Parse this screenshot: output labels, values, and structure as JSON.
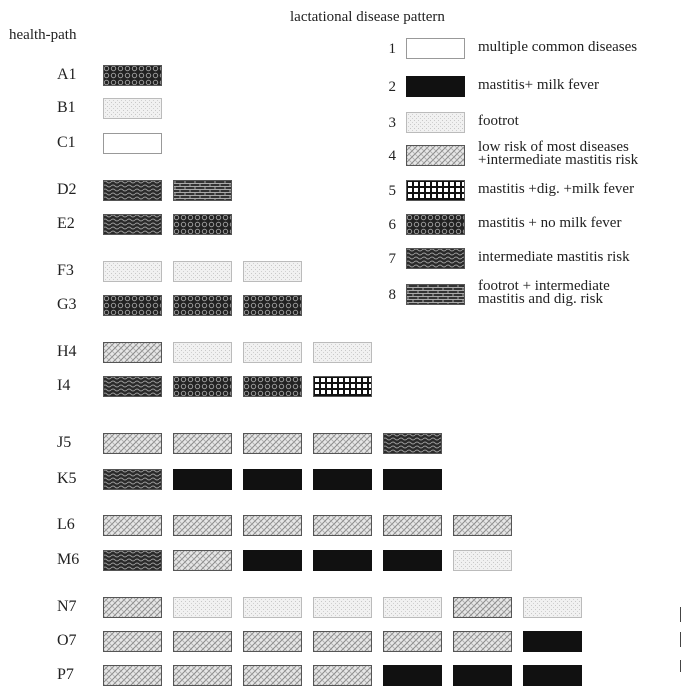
{
  "title": "lactational disease pattern",
  "y_axis_label": "health-path",
  "patterns": {
    "1": {
      "label": [
        "multiple common diseases"
      ]
    },
    "2": {
      "label": [
        "mastitis+ milk fever"
      ]
    },
    "3": {
      "label": [
        "footrot"
      ]
    },
    "4": {
      "label": [
        "low risk of most diseases",
        "+intermediate mastitis risk"
      ]
    },
    "5": {
      "label": [
        "mastitis +dig. +milk fever"
      ]
    },
    "6": {
      "label": [
        "mastitis + no milk fever"
      ]
    },
    "7": {
      "label": [
        "intermediate mastitis risk"
      ]
    },
    "8": {
      "label": [
        "footrot + intermediate",
        "mastitis and dig. risk"
      ]
    }
  },
  "rows": [
    {
      "label": "A1",
      "cells": [
        6
      ]
    },
    {
      "label": "B1",
      "cells": [
        3
      ]
    },
    {
      "label": "C1",
      "cells": [
        1
      ]
    },
    {
      "label": "D2",
      "cells": [
        7,
        8
      ]
    },
    {
      "label": "E2",
      "cells": [
        7,
        6
      ]
    },
    {
      "label": "F3",
      "cells": [
        3,
        3,
        3
      ]
    },
    {
      "label": "G3",
      "cells": [
        6,
        6,
        6
      ]
    },
    {
      "label": "H4",
      "cells": [
        4,
        3,
        3,
        3
      ]
    },
    {
      "label": "I4",
      "cells": [
        7,
        6,
        6,
        5
      ]
    },
    {
      "label": "J5",
      "cells": [
        4,
        4,
        4,
        4,
        7
      ]
    },
    {
      "label": "K5",
      "cells": [
        7,
        2,
        2,
        2,
        2
      ]
    },
    {
      "label": "L6",
      "cells": [
        4,
        4,
        4,
        4,
        4,
        4
      ]
    },
    {
      "label": "M6",
      "cells": [
        7,
        4,
        2,
        2,
        2,
        3
      ]
    },
    {
      "label": "N7",
      "cells": [
        4,
        3,
        3,
        3,
        3,
        4,
        3
      ]
    },
    {
      "label": "O7",
      "cells": [
        4,
        4,
        4,
        4,
        4,
        4,
        2
      ]
    },
    {
      "label": "P7",
      "cells": [
        4,
        4,
        4,
        4,
        2,
        2,
        2
      ]
    }
  ]
}
